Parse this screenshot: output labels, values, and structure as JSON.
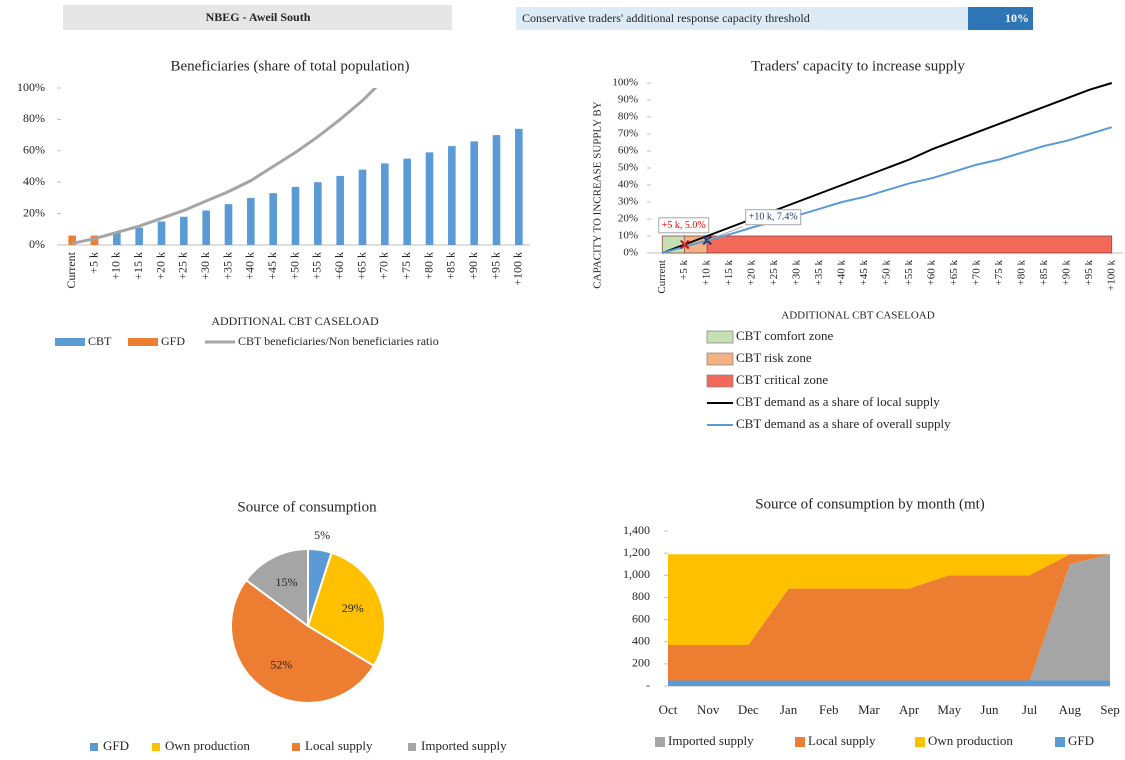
{
  "header": {
    "title": "NBEG - Aweil South",
    "threshold_label": "Conservative traders' additional response capacity threshold",
    "threshold_value": "10%"
  },
  "chart_data": [
    {
      "type": "bar",
      "title": "Beneficiaries (share of total population)",
      "x_label": "ADDITIONAL CBT CASELOAD",
      "categories": [
        "Current",
        "+5 k",
        "+10 k",
        "+15 k",
        "+20 k",
        "+25 k",
        "+30 k",
        "+35 k",
        "+40 k",
        "+45 k",
        "+50 k",
        "+55 k",
        "+60 k",
        "+65 k",
        "+70 k",
        "+75 k",
        "+80 k",
        "+85 k",
        "+90 k",
        "+95 k",
        "+100 k"
      ],
      "series": [
        {
          "name": "CBT",
          "color": "#5b9bd5",
          "values": [
            null,
            4,
            8,
            11,
            15,
            18,
            22,
            26,
            30,
            33,
            37,
            40,
            44,
            48,
            52,
            55,
            59,
            63,
            66,
            70,
            74
          ]
        },
        {
          "name": "GFD",
          "color": "#ed7d31",
          "values": [
            6,
            6,
            null,
            null,
            null,
            null,
            null,
            null,
            null,
            null,
            null,
            null,
            null,
            null,
            null,
            null,
            null,
            null,
            null,
            null,
            null
          ]
        },
        {
          "name": "CBT beneficiaries/Non beneficiaries ratio",
          "color": "#a5a5a5",
          "type": "line",
          "values": [
            1,
            4,
            8,
            12,
            17,
            22,
            28,
            34,
            41,
            50,
            59,
            69,
            80,
            92,
            106,
            null,
            null,
            null,
            null,
            null,
            null
          ]
        }
      ],
      "ylim": [
        0,
        100
      ],
      "yticks": [
        {
          "value": 0,
          "label": "0%"
        },
        {
          "value": 20,
          "label": "20%"
        },
        {
          "value": 40,
          "label": "40%"
        },
        {
          "value": 60,
          "label": "60%"
        },
        {
          "value": 80,
          "label": "80%"
        },
        {
          "value": 100,
          "label": "100%"
        }
      ]
    },
    {
      "type": "line",
      "title": "Traders' capacity to increase supply",
      "x_label": "ADDITIONAL CBT CASELOAD",
      "y_label": "CAPACITY TO INCREASE SUPPLY BY",
      "categories": [
        "Current",
        "+5 k",
        "+10 k",
        "+15 k",
        "+20 k",
        "+25 k",
        "+30 k",
        "+35 k",
        "+40 k",
        "+45 k",
        "+50 k",
        "+55 k",
        "+60 k",
        "+65 k",
        "+70 k",
        "+75 k",
        "+80 k",
        "+85 k",
        "+90 k",
        "+95 k",
        "+100 k"
      ],
      "series": [
        {
          "name": "CBT comfort zone",
          "color": "#c5e0b4",
          "type": "area",
          "values": [
            10,
            10,
            null,
            null,
            null,
            null,
            null,
            null,
            null,
            null,
            null,
            null,
            null,
            null,
            null,
            null,
            null,
            null,
            null,
            null,
            null
          ]
        },
        {
          "name": "CBT risk zone",
          "color": "#f4b183",
          "type": "area",
          "values": [
            null,
            10,
            10,
            null,
            null,
            null,
            null,
            null,
            null,
            null,
            null,
            null,
            null,
            null,
            null,
            null,
            null,
            null,
            null,
            null,
            null
          ]
        },
        {
          "name": "CBT critical zone",
          "color": "#f4685a",
          "type": "area",
          "values": [
            null,
            null,
            10,
            10,
            10,
            10,
            10,
            10,
            10,
            10,
            10,
            10,
            10,
            10,
            10,
            10,
            10,
            10,
            10,
            10,
            10
          ]
        },
        {
          "name": "CBT demand as a share of local supply",
          "color": "#000000",
          "type": "line",
          "values": [
            0,
            5,
            10,
            15,
            20,
            25,
            30,
            35,
            40,
            45,
            50,
            55,
            61,
            66,
            71,
            76,
            81,
            86,
            91,
            96,
            100
          ]
        },
        {
          "name": "CBT demand as a share of overall supply",
          "color": "#5b9bd5",
          "type": "line",
          "values": [
            0,
            3.7,
            7.4,
            11,
            15,
            18.5,
            22,
            26,
            30,
            33,
            37,
            41,
            44,
            48,
            52,
            55,
            59,
            63,
            66,
            70,
            74
          ]
        }
      ],
      "annotations": [
        {
          "text": "+5 k, 5.0%",
          "category": 1,
          "value": 5.0,
          "color": "#ff0000"
        },
        {
          "text": "+10 k, 7.4%",
          "category": 2,
          "value": 7.4,
          "color": "#1f3864"
        }
      ],
      "ylim": [
        0,
        100
      ],
      "yticks": [
        {
          "value": 0,
          "label": "0%"
        },
        {
          "value": 10,
          "label": "10%"
        },
        {
          "value": 20,
          "label": "20%"
        },
        {
          "value": 30,
          "label": "30%"
        },
        {
          "value": 40,
          "label": "40%"
        },
        {
          "value": 50,
          "label": "50%"
        },
        {
          "value": 60,
          "label": "60%"
        },
        {
          "value": 70,
          "label": "70%"
        },
        {
          "value": 80,
          "label": "80%"
        },
        {
          "value": 90,
          "label": "90%"
        },
        {
          "value": 100,
          "label": "100%"
        }
      ]
    },
    {
      "type": "pie",
      "title": "Source of consumption",
      "categories": [
        "GFD",
        "Own production",
        "Local supply",
        "Imported supply"
      ],
      "values": [
        5,
        29,
        52,
        15
      ],
      "value_labels": [
        "5%",
        "29%",
        "52%",
        "15%"
      ],
      "colors": [
        "#5b9bd5",
        "#ffc000",
        "#ed7d31",
        "#a5a5a5"
      ]
    },
    {
      "type": "area",
      "title": "Source of consumption by month (mt)",
      "categories": [
        "Oct",
        "Nov",
        "Dec",
        "Jan",
        "Feb",
        "Mar",
        "Apr",
        "May",
        "Jun",
        "Jul",
        "Aug",
        "Sep"
      ],
      "series": [
        {
          "name": "Imported supply",
          "color": "#a5a5a5",
          "values": [
            0,
            0,
            0,
            0,
            0,
            0,
            0,
            0,
            0,
            0,
            1050,
            1140
          ]
        },
        {
          "name": "Local supply",
          "color": "#ed7d31",
          "values": [
            320,
            320,
            320,
            830,
            830,
            830,
            830,
            950,
            950,
            950,
            90,
            0
          ]
        },
        {
          "name": "Own production",
          "color": "#ffc000",
          "values": [
            820,
            820,
            820,
            310,
            310,
            310,
            310,
            190,
            190,
            190,
            0,
            0
          ]
        },
        {
          "name": "GFD",
          "color": "#5b9bd5",
          "values": [
            50,
            50,
            50,
            50,
            50,
            50,
            50,
            50,
            50,
            50,
            50,
            50
          ]
        }
      ],
      "ylim": [
        0,
        1400
      ],
      "yticks": [
        {
          "value": 0,
          "label": "-"
        },
        200,
        400,
        600,
        800,
        {
          "value": 1000,
          "label": "1,000"
        },
        {
          "value": 1200,
          "label": "1,200"
        },
        {
          "value": 1400,
          "label": "1,400"
        }
      ]
    }
  ]
}
